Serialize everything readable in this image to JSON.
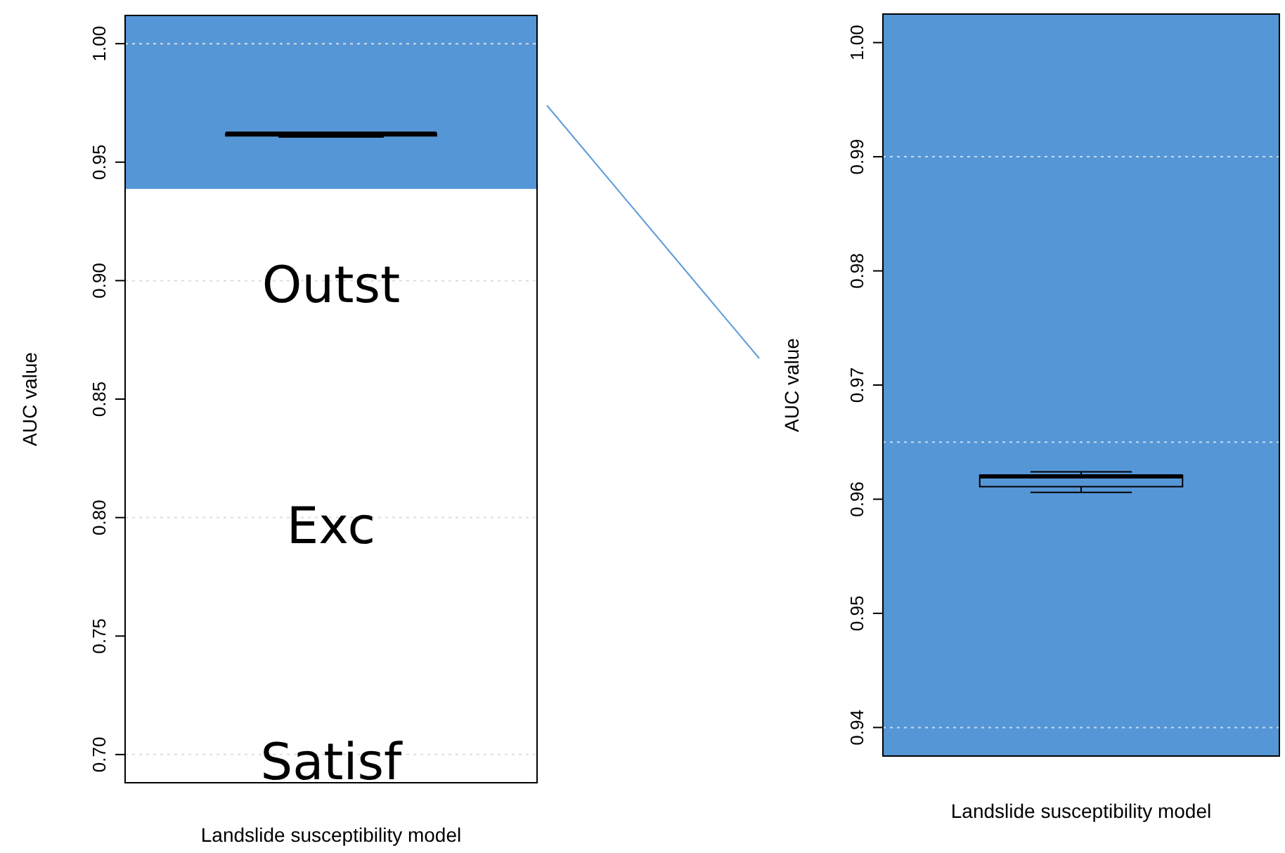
{
  "chart_data": [
    {
      "type": "box",
      "categories": [
        null
      ],
      "xlabel": "Landslide susceptibility model",
      "ylabel": "AUC value",
      "ylim": [
        0.6881,
        1.0119
      ],
      "yticks": [
        {
          "value": 0.7,
          "label": "0.70"
        },
        {
          "value": 0.75,
          "label": "0.75"
        },
        {
          "value": 0.8,
          "label": "0.80"
        },
        {
          "value": 0.85,
          "label": "0.85"
        },
        {
          "value": 0.9,
          "label": "0.90"
        },
        {
          "value": 0.95,
          "label": "0.95"
        },
        {
          "value": 1.0,
          "label": "1.00"
        }
      ],
      "boxes": [
        {
          "low": 0.9606,
          "q1": 0.9611,
          "median": 0.962,
          "q3": 0.9621,
          "high": 0.9624
        }
      ],
      "bands": [
        {
          "axis": "y",
          "from": 0.9387,
          "to": 1.0119,
          "color": "#5596d6"
        }
      ],
      "ref_lines": [
        {
          "axis": "y",
          "value": 0.7,
          "color": "#dddddd",
          "line_style": "dotted"
        },
        {
          "axis": "y",
          "value": 0.8,
          "color": "#dddddd",
          "line_style": "dotted"
        },
        {
          "axis": "y",
          "value": 0.9,
          "color": "#dddddd",
          "line_style": "dotted"
        },
        {
          "axis": "y",
          "value": 1.0,
          "color": "#dddddd",
          "line_style": "dotted"
        }
      ],
      "annotations": [
        "Outst",
        "Exc",
        "Satisf"
      ]
    },
    {
      "type": "box",
      "categories": [
        null
      ],
      "xlabel": "Landslide susceptibility model",
      "ylabel": "AUC value",
      "ylim": [
        0.9375,
        1.0025
      ],
      "yticks": [
        {
          "value": 0.94,
          "label": "0.94"
        },
        {
          "value": 0.95,
          "label": "0.95"
        },
        {
          "value": 0.96,
          "label": "0.96"
        },
        {
          "value": 0.97,
          "label": "0.97"
        },
        {
          "value": 0.98,
          "label": "0.98"
        },
        {
          "value": 0.99,
          "label": "0.99"
        },
        {
          "value": 1.0,
          "label": "1.00"
        }
      ],
      "boxes": [
        {
          "low": 0.9606,
          "q1": 0.9611,
          "median": 0.962,
          "q3": 0.9621,
          "high": 0.9624
        }
      ],
      "bands": [
        {
          "axis": "y",
          "from": 0.9375,
          "to": 1.0025,
          "color": "#5596d6"
        }
      ],
      "ref_lines": [
        {
          "axis": "y",
          "value": 0.94,
          "color": "#c8dcf0",
          "line_style": "dotted"
        },
        {
          "axis": "y",
          "value": 0.965,
          "color": "#c8dcf0",
          "line_style": "dotted"
        },
        {
          "axis": "y",
          "value": 0.99,
          "color": "#c8dcf0",
          "line_style": "dotted"
        }
      ]
    }
  ]
}
